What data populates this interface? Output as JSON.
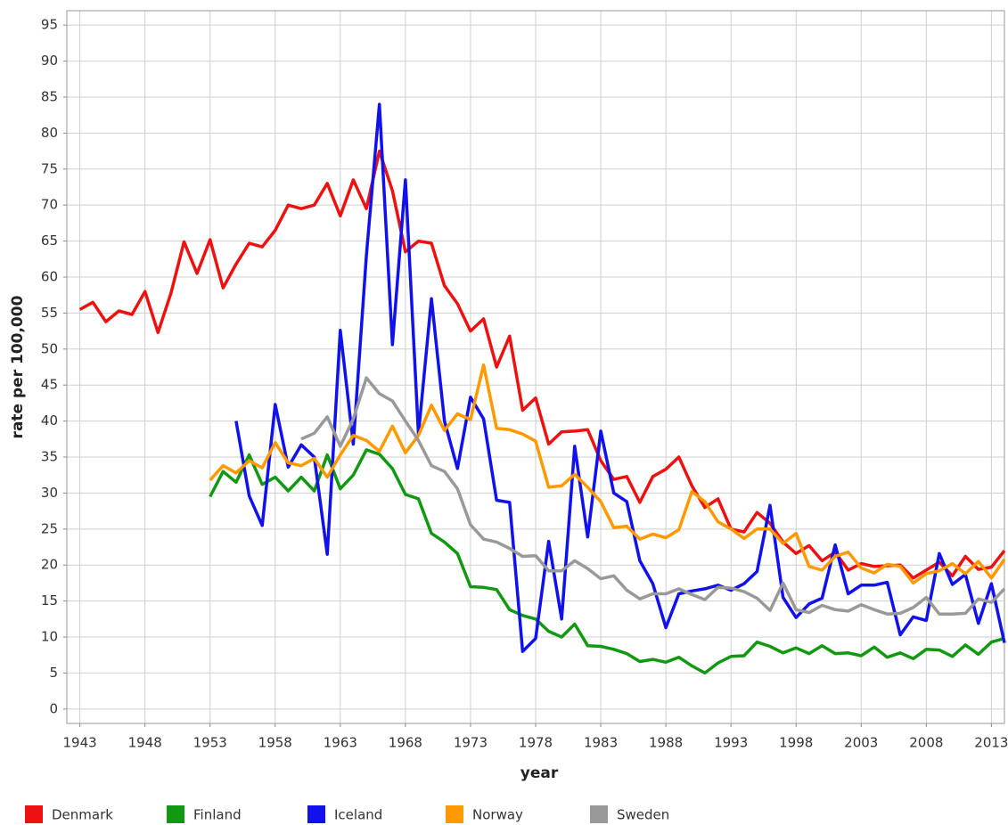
{
  "chart_data": {
    "type": "line",
    "x_label": "year",
    "y_label": "rate per 100,000",
    "x": [
      1943,
      1944,
      1945,
      1946,
      1947,
      1948,
      1949,
      1950,
      1951,
      1952,
      1953,
      1954,
      1955,
      1956,
      1957,
      1958,
      1959,
      1960,
      1961,
      1962,
      1963,
      1964,
      1965,
      1966,
      1967,
      1968,
      1969,
      1970,
      1971,
      1972,
      1973,
      1974,
      1975,
      1976,
      1977,
      1978,
      1979,
      1980,
      1981,
      1982,
      1983,
      1984,
      1985,
      1986,
      1987,
      1988,
      1989,
      1990,
      1991,
      1992,
      1993,
      1994,
      1995,
      1996,
      1997,
      1998,
      1999,
      2000,
      2001,
      2002,
      2003,
      2004,
      2005,
      2006,
      2007,
      2008,
      2009,
      2010,
      2011,
      2012,
      2013,
      2014
    ],
    "xlim": [
      1942,
      2014
    ],
    "xticks": [
      1943,
      1948,
      1953,
      1958,
      1963,
      1968,
      1973,
      1978,
      1983,
      1988,
      1993,
      1998,
      2003,
      2008,
      2013
    ],
    "ylim": [
      -2,
      97
    ],
    "yticks": [
      0,
      5,
      10,
      15,
      20,
      25,
      30,
      35,
      40,
      45,
      50,
      55,
      60,
      65,
      70,
      75,
      80,
      85,
      90,
      95
    ],
    "grid": true,
    "legend": "bottom",
    "series": [
      {
        "name": "Denmark",
        "color": "#ee1111",
        "values": [
          55.5,
          56.5,
          53.8,
          55.3,
          54.8,
          58,
          52.3,
          57.8,
          64.9,
          60.5,
          65.2,
          58.5,
          61.8,
          64.7,
          64.2,
          66.5,
          70,
          69.5,
          70,
          73,
          68.5,
          73.5,
          69.5,
          77.5,
          72,
          63.5,
          65,
          64.7,
          58.8,
          56.3,
          52.5,
          54.2,
          47.5,
          51.8,
          41.5,
          43.2,
          36.8,
          38.5,
          38.6,
          38.8,
          34.5,
          31.9,
          32.3,
          28.7,
          32.3,
          33.3,
          35,
          31,
          28,
          29.2,
          25,
          24.6,
          27.3,
          25.8,
          23.2,
          21.6,
          22.7,
          20.6,
          21.8,
          19.3,
          20.2,
          19.8,
          19.9,
          20,
          18.2,
          19.3,
          20.4,
          18.5,
          21.2,
          19.4,
          19.7,
          22
        ]
      },
      {
        "name": "Finland",
        "color": "#119911",
        "values": [
          null,
          null,
          null,
          null,
          null,
          null,
          null,
          null,
          null,
          null,
          29.5,
          33,
          31.5,
          35.3,
          31.2,
          32.2,
          30.3,
          32.2,
          30.3,
          35.3,
          30.6,
          32.5,
          36,
          35.4,
          33.4,
          29.8,
          29.2,
          24.4,
          23.2,
          21.6,
          17,
          16.9,
          16.6,
          13.8,
          13,
          12.5,
          10.8,
          10,
          11.8,
          8.8,
          8.7,
          8.3,
          7.7,
          6.6,
          6.9,
          6.5,
          7.2,
          6,
          5,
          6.4,
          7.3,
          7.4,
          9.3,
          8.7,
          7.8,
          8.5,
          7.7,
          8.8,
          7.7,
          7.8,
          7.4,
          8.6,
          7.2,
          7.8,
          7,
          8.3,
          8.2,
          7.3,
          8.9,
          7.6,
          9.3,
          9.8
        ]
      },
      {
        "name": "Iceland",
        "color": "#1111ee",
        "values": [
          null,
          null,
          null,
          null,
          null,
          null,
          null,
          null,
          null,
          null,
          null,
          null,
          40,
          29.6,
          25.5,
          42.3,
          33.6,
          36.7,
          35,
          21.5,
          52.6,
          36.8,
          63,
          84,
          50.6,
          73.5,
          38.2,
          57,
          40,
          33.4,
          43.3,
          40.3,
          29,
          28.7,
          8,
          9.8,
          23.3,
          12.5,
          36.5,
          23.9,
          38.6,
          30,
          28.8,
          20.6,
          17.4,
          11.3,
          16,
          16.4,
          16.7,
          17.2,
          16.5,
          17.4,
          19.1,
          28.3,
          15.5,
          12.7,
          14.6,
          15.4,
          22.8,
          16,
          17.2,
          17.2,
          17.6,
          10.3,
          12.8,
          12.3,
          21.6,
          17.3,
          18.7,
          11.9,
          17.4,
          9.2
        ]
      },
      {
        "name": "Norway",
        "color": "#ff9900",
        "values": [
          null,
          null,
          null,
          null,
          null,
          null,
          null,
          null,
          null,
          null,
          31.8,
          33.8,
          32.8,
          34.5,
          33.5,
          37,
          34.2,
          33.8,
          34.8,
          32.2,
          35.3,
          38,
          37.3,
          35.8,
          39.3,
          35.6,
          38,
          42.2,
          38.7,
          41,
          40.2,
          47.8,
          39,
          38.8,
          38.2,
          37.2,
          30.8,
          31,
          32.6,
          30.8,
          28.8,
          25.2,
          25.4,
          23.6,
          24.3,
          23.8,
          24.9,
          30.2,
          28.8,
          26,
          25,
          23.7,
          25,
          25,
          23,
          24.4,
          19.8,
          19.3,
          21.2,
          21.8,
          19.6,
          18.9,
          20.1,
          19.8,
          17.5,
          18.8,
          19.2,
          20.2,
          18.8,
          20.5,
          18.2,
          20.8
        ]
      },
      {
        "name": "Sweden",
        "color": "#999999",
        "values": [
          null,
          null,
          null,
          null,
          null,
          null,
          null,
          null,
          null,
          null,
          null,
          null,
          null,
          null,
          null,
          null,
          null,
          37.5,
          38.3,
          40.6,
          36.5,
          40.3,
          46,
          43.8,
          42.8,
          40,
          37.3,
          33.8,
          33,
          30.6,
          25.6,
          23.6,
          23.2,
          22.3,
          21.2,
          21.3,
          19.2,
          19.2,
          20.6,
          19.5,
          18.1,
          18.5,
          16.5,
          15.3,
          16,
          16,
          16.7,
          15.9,
          15.2,
          16.9,
          16.8,
          16.3,
          15.4,
          13.7,
          17.5,
          13.8,
          13.4,
          14.4,
          13.8,
          13.6,
          14.5,
          13.8,
          13.2,
          13.3,
          14.1,
          15.5,
          13.2,
          13.2,
          13.3,
          15.3,
          14.8,
          16.7
        ]
      }
    ]
  }
}
